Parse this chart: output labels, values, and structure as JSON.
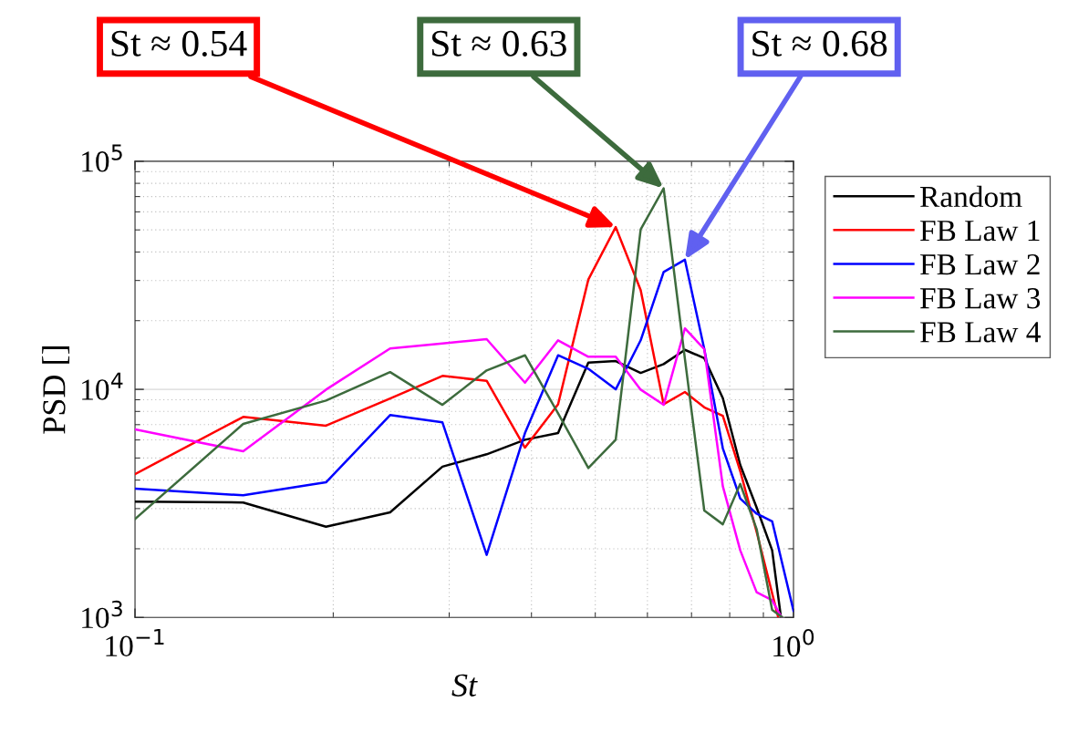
{
  "chart_data": {
    "type": "line",
    "xlabel": "St",
    "ylabel": "PSD []",
    "log": "xy",
    "grid": true,
    "legend": "right",
    "line_style": "solid",
    "marker": "none",
    "xlim": [
      0.1,
      1.0
    ],
    "ylim": [
      1000,
      100000
    ],
    "xticks": [
      {
        "value": 0.1,
        "label": "10$^{−1}$"
      },
      {
        "value": 1.0,
        "label": "10$^{0}$"
      }
    ],
    "yticks": [
      {
        "value": 1000,
        "label": "10$^{3}$"
      },
      {
        "value": 10000,
        "label": "10$^{4}$"
      },
      {
        "value": 100000,
        "label": "10$^{5}$"
      }
    ],
    "series": [
      {
        "name": "Random",
        "color": "#000000",
        "x": [
          0.1,
          0.146,
          0.195,
          0.244,
          0.293,
          0.342,
          0.391,
          0.439,
          0.488,
          0.537,
          0.586,
          0.635,
          0.684,
          0.732,
          0.781,
          0.83,
          0.879,
          0.928,
          0.957
        ],
        "values": [
          3220,
          3190,
          2500,
          2890,
          4580,
          5190,
          6010,
          6430,
          13100,
          13300,
          11800,
          12900,
          14900,
          13700,
          9150,
          4660,
          3030,
          1970,
          1000
        ]
      },
      {
        "name": "FB Law 1",
        "color": "#ff0000",
        "x": [
          0.1,
          0.146,
          0.195,
          0.244,
          0.293,
          0.342,
          0.391,
          0.439,
          0.488,
          0.537,
          0.586,
          0.635,
          0.684,
          0.732,
          0.781,
          0.83,
          0.879,
          0.948
        ],
        "values": [
          4250,
          7570,
          6930,
          9120,
          11450,
          10900,
          5550,
          8600,
          30300,
          51400,
          27200,
          8600,
          9730,
          8340,
          7660,
          4380,
          2370,
          1000
        ]
      },
      {
        "name": "FB Law 2",
        "color": "#0000ff",
        "x": [
          0.1,
          0.146,
          0.195,
          0.244,
          0.293,
          0.342,
          0.391,
          0.439,
          0.488,
          0.537,
          0.586,
          0.635,
          0.684,
          0.732,
          0.781,
          0.83,
          0.879,
          0.928,
          1.0
        ],
        "values": [
          3670,
          3430,
          3910,
          7710,
          7160,
          1880,
          6430,
          14100,
          12300,
          10000,
          16400,
          32700,
          37000,
          15000,
          5510,
          3320,
          2850,
          2640,
          1070
        ]
      },
      {
        "name": "FB Law 3",
        "color": "#ff00ff",
        "x": [
          0.1,
          0.146,
          0.195,
          0.244,
          0.293,
          0.342,
          0.391,
          0.439,
          0.488,
          0.537,
          0.586,
          0.635,
          0.684,
          0.732,
          0.781,
          0.83,
          0.879,
          0.928,
          0.959
        ],
        "values": [
          6670,
          5350,
          9970,
          15100,
          15900,
          16600,
          10700,
          16400,
          13900,
          13900,
          9970,
          8550,
          18500,
          15000,
          3760,
          1970,
          1290,
          1190,
          1000
        ]
      },
      {
        "name": "FB Law 4",
        "color": "#3d6b3d",
        "x": [
          0.1,
          0.146,
          0.195,
          0.244,
          0.293,
          0.342,
          0.391,
          0.439,
          0.488,
          0.537,
          0.586,
          0.635,
          0.684,
          0.732,
          0.781,
          0.83,
          0.879,
          0.928,
          0.962
        ],
        "values": [
          2700,
          7050,
          8930,
          11900,
          8550,
          12100,
          14100,
          7850,
          4520,
          6010,
          50300,
          76100,
          13600,
          2940,
          2560,
          3850,
          2440,
          1080,
          1000
        ]
      }
    ],
    "annotations": [
      {
        "text": "St ≈ 0.54",
        "x": 0.537,
        "y": 51400
      },
      {
        "text": "St ≈ 0.63",
        "x": 0.635,
        "y": 76100
      },
      {
        "text": "St ≈ 0.68",
        "x": 0.684,
        "y": 37000
      }
    ]
  }
}
